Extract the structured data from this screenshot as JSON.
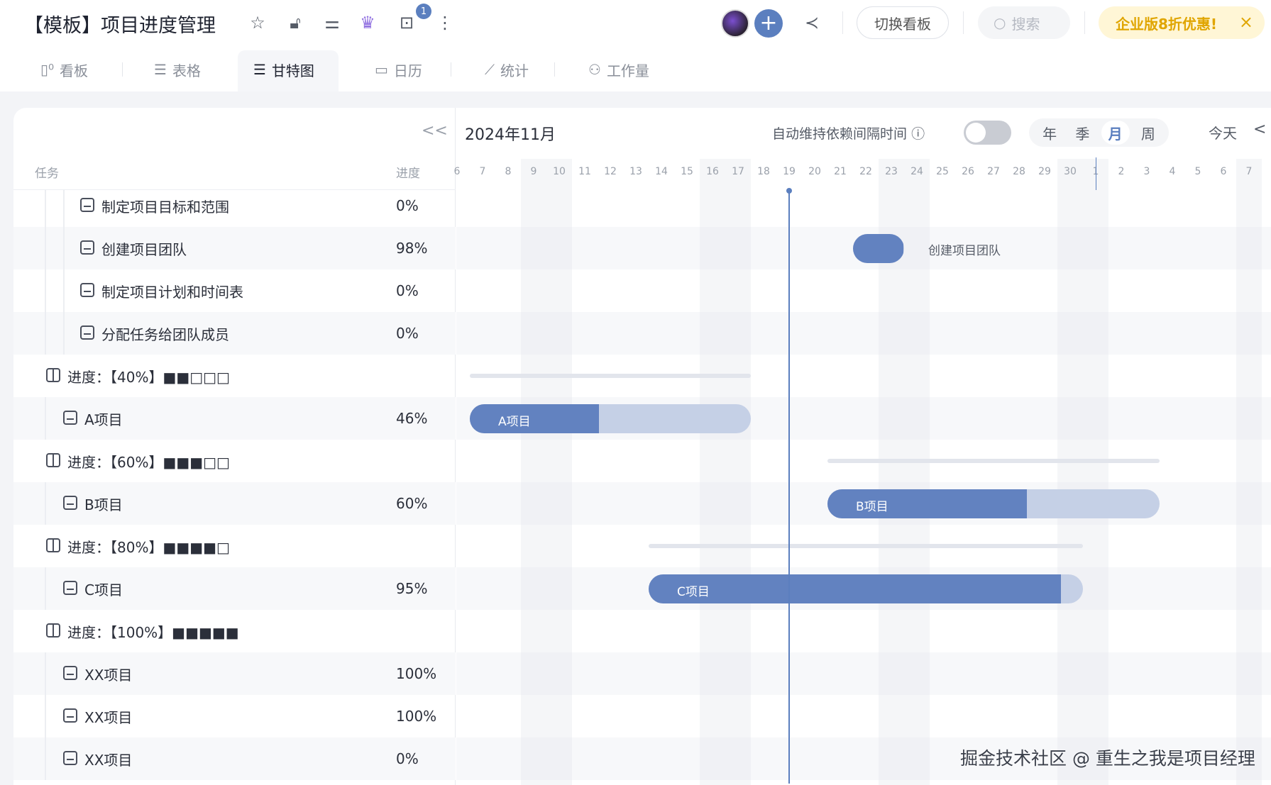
{
  "header": {
    "title": "【模板】项目进度管理",
    "notification_count": "1",
    "switch_board": "切换看板",
    "search_placeholder": "搜索",
    "promo": "企业版8折优惠!",
    "promo_close": "×"
  },
  "tabs": [
    {
      "label": "看板",
      "icon": "board-icon"
    },
    {
      "label": "表格",
      "icon": "list-icon"
    },
    {
      "label": "甘特图",
      "icon": "gantt-icon",
      "active": true
    },
    {
      "label": "日历",
      "icon": "calendar-icon"
    },
    {
      "label": "统计",
      "icon": "chart-icon"
    },
    {
      "label": "工作量",
      "icon": "workload-icon"
    }
  ],
  "left": {
    "collapse": "<<",
    "col_task": "任务",
    "col_progress": "进度"
  },
  "rows": [
    {
      "type": "subtask",
      "label": "制定项目目标和范围",
      "progress": "0%"
    },
    {
      "type": "subtask",
      "label": "创建项目团队",
      "progress": "98%"
    },
    {
      "type": "subtask",
      "label": "制定项目计划和时间表",
      "progress": "0%"
    },
    {
      "type": "subtask",
      "label": "分配任务给团队成员",
      "progress": "0%"
    },
    {
      "type": "group",
      "label": "进度：【40%】■■□□□",
      "progress": ""
    },
    {
      "type": "task",
      "label": "A项目",
      "progress": "46%"
    },
    {
      "type": "group",
      "label": "进度：【60%】■■■□□",
      "progress": ""
    },
    {
      "type": "task",
      "label": "B项目",
      "progress": "60%"
    },
    {
      "type": "group",
      "label": "进度：【80%】■■■■□",
      "progress": ""
    },
    {
      "type": "task",
      "label": "C项目",
      "progress": "95%"
    },
    {
      "type": "group",
      "label": "进度：【100%】■■■■■",
      "progress": ""
    },
    {
      "type": "task",
      "label": "XX项目",
      "progress": "100%"
    },
    {
      "type": "task",
      "label": "XX项目",
      "progress": "100%"
    },
    {
      "type": "task",
      "label": "XX项目",
      "progress": "0%"
    }
  ],
  "gantt": {
    "month_label": "2024年11月",
    "auto_dependency": "自动维持依赖间隔时间",
    "auto_dependency_on": false,
    "scales": [
      "年",
      "季",
      "月",
      "周"
    ],
    "active_scale": "月",
    "today": "今天",
    "prev": "<",
    "days": [
      "6",
      "7",
      "8",
      "9",
      "10",
      "11",
      "12",
      "13",
      "14",
      "15",
      "16",
      "17",
      "18",
      "19",
      "20",
      "21",
      "22",
      "23",
      "24",
      "25",
      "26",
      "27",
      "28",
      "29",
      "30",
      "1",
      "2",
      "3",
      "4",
      "5",
      "6",
      "7"
    ],
    "today_date": "2024-11-19",
    "bars": [
      {
        "row": 1,
        "start": "2024-11-22",
        "end": "2024-11-23",
        "progress": 98,
        "label": "",
        "outside_label": "创建项目团队",
        "kind": "task"
      },
      {
        "row": 4,
        "start": "2024-11-07",
        "end": "2024-11-17",
        "kind": "summary"
      },
      {
        "row": 5,
        "start": "2024-11-07",
        "end": "2024-11-17",
        "progress": 46,
        "label": "A项目",
        "kind": "task"
      },
      {
        "row": 6,
        "start": "2024-11-21",
        "end": "2024-12-03",
        "kind": "summary"
      },
      {
        "row": 7,
        "start": "2024-11-21",
        "end": "2024-12-03",
        "progress": 60,
        "label": "B项目",
        "kind": "task"
      },
      {
        "row": 8,
        "start": "2024-11-14",
        "end": "2024-11-30",
        "kind": "summary"
      },
      {
        "row": 9,
        "start": "2024-11-14",
        "end": "2024-11-30",
        "progress": 95,
        "label": "C项目",
        "kind": "task"
      }
    ],
    "colors": {
      "bar": "#6282c0",
      "bar_track": "#c5d0e6",
      "summary": "#e2e5ec",
      "today_line": "#5b7fbf"
    }
  },
  "watermark": "掘金技术社区 @ 重生之我是项目经理"
}
